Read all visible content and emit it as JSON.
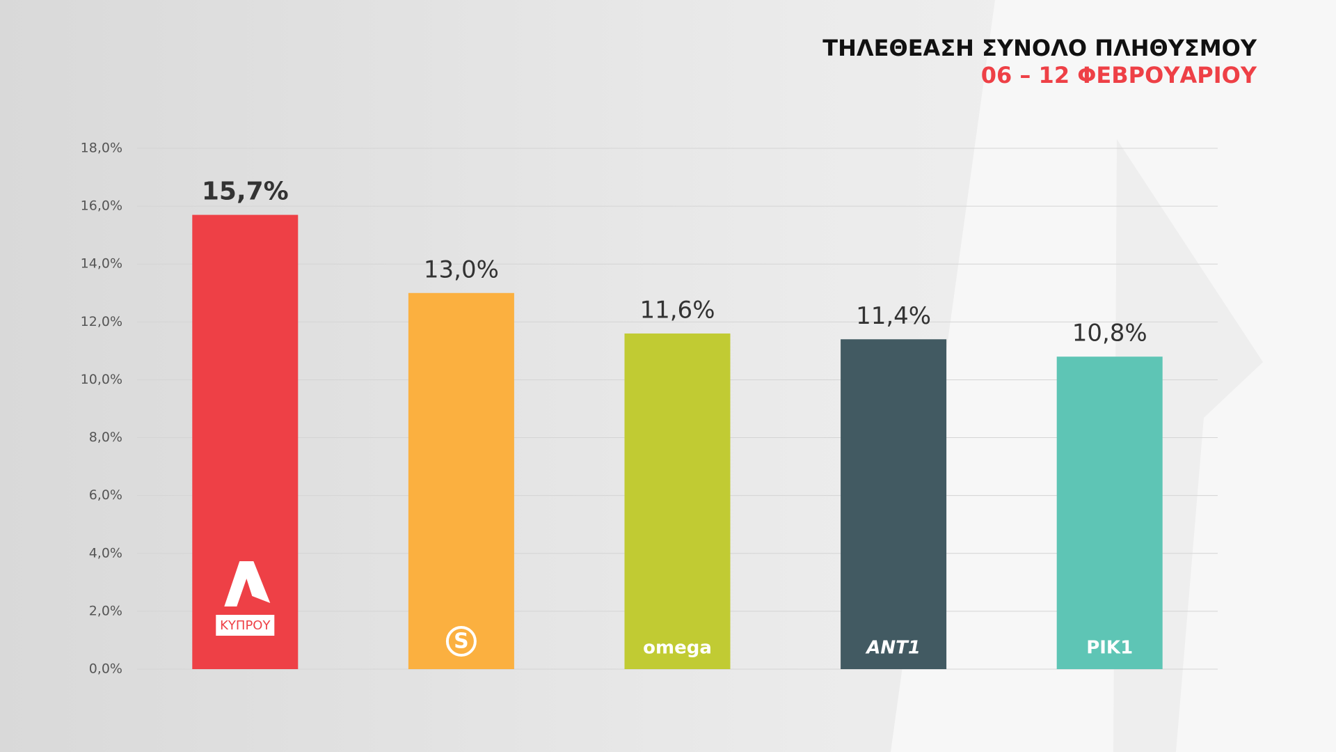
{
  "chart_data": {
    "type": "bar",
    "title": "ΤΗΛΕΘΕΑΣΗ ΣΥΝΟΛΟ ΠΛΗΘΥΣΜΟΥ",
    "subtitle": "06 – 12 ΦΕΒΡΟΥΑΡΙΟΥ",
    "categories": [
      "ΚΥΠΡΟΥ",
      "S",
      "omega",
      "ANT1",
      "ΡΙΚ1"
    ],
    "values": [
      15.7,
      13.0,
      11.6,
      11.4,
      10.8
    ],
    "value_labels": [
      "15,7%",
      "13,0%",
      "11,6%",
      "11,4%",
      "10,8%"
    ],
    "colors": [
      "#ee4046",
      "#fbb040",
      "#c1cb33",
      "#425a62",
      "#5ec5b5"
    ],
    "ylim": [
      0,
      18
    ],
    "yticks": [
      {
        "value": 0,
        "label": "0,0%"
      },
      {
        "value": 2,
        "label": "2,0%"
      },
      {
        "value": 4,
        "label": "4,0%"
      },
      {
        "value": 6,
        "label": "6,0%"
      },
      {
        "value": 8,
        "label": "8,0%"
      },
      {
        "value": 10,
        "label": "10,0%"
      },
      {
        "value": 12,
        "label": "12,0%"
      },
      {
        "value": 14,
        "label": "14,0%"
      },
      {
        "value": 16,
        "label": "16,0%"
      },
      {
        "value": 18,
        "label": "18,0%"
      }
    ],
    "grid": true
  }
}
